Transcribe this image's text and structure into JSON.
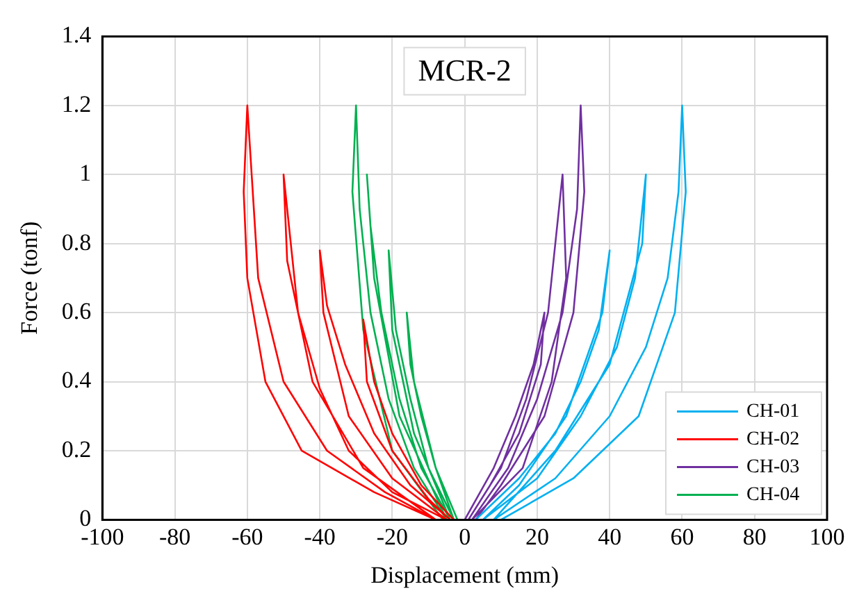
{
  "chart_data": {
    "type": "line",
    "title": "MCR-2",
    "xlabel": "Displacement (mm)",
    "ylabel": "Force (tonf)",
    "xlim": [
      -100,
      100
    ],
    "xticks": [
      -100,
      -80,
      -60,
      -40,
      -20,
      0,
      20,
      40,
      60,
      80,
      100
    ],
    "ylim": [
      0,
      1.4
    ],
    "yticks": [
      0,
      0.2,
      0.4,
      0.6,
      0.8,
      1,
      1.2,
      1.4
    ],
    "grid": true,
    "legend": "bottom right",
    "marker": "none",
    "line_style": "solid",
    "series": [
      {
        "name": "CH-01",
        "color": "#00b0f0",
        "x": [
          3,
          15,
          25,
          32,
          37,
          40,
          38,
          28,
          15,
          5,
          20,
          32,
          42,
          47,
          50,
          49,
          40,
          25,
          8,
          25,
          40,
          50,
          56,
          59,
          60,
          61,
          58,
          48,
          30,
          10
        ],
        "values": [
          0,
          0.12,
          0.25,
          0.4,
          0.55,
          0.78,
          0.6,
          0.3,
          0.1,
          0,
          0.12,
          0.3,
          0.5,
          0.7,
          1.0,
          0.8,
          0.45,
          0.2,
          0,
          0.12,
          0.3,
          0.5,
          0.7,
          0.95,
          1.2,
          0.95,
          0.6,
          0.3,
          0.12,
          0
        ]
      },
      {
        "name": "CH-02",
        "color": "#ff0000",
        "x": [
          -3,
          -12,
          -20,
          -25,
          -28,
          -27,
          -20,
          -10,
          -4,
          -15,
          -25,
          -33,
          -38,
          -40,
          -39,
          -32,
          -20,
          -5,
          -20,
          -32,
          -40,
          -46,
          -50,
          -49,
          -42,
          -28,
          -8,
          -22,
          -38,
          -50,
          -57,
          -60,
          -61,
          -60,
          -55,
          -45,
          -25,
          -8
        ],
        "values": [
          0,
          0.1,
          0.25,
          0.4,
          0.58,
          0.4,
          0.2,
          0.06,
          0,
          0.1,
          0.25,
          0.45,
          0.62,
          0.78,
          0.6,
          0.3,
          0.12,
          0,
          0.08,
          0.2,
          0.38,
          0.6,
          1.0,
          0.75,
          0.4,
          0.15,
          0,
          0.08,
          0.2,
          0.4,
          0.7,
          1.2,
          0.95,
          0.7,
          0.4,
          0.2,
          0.08,
          0
        ]
      },
      {
        "name": "CH-03",
        "color": "#7030a0",
        "x": [
          0,
          8,
          14,
          19,
          22,
          21,
          15,
          7,
          1,
          10,
          17,
          23,
          27,
          28,
          24,
          16,
          2,
          12,
          20,
          27,
          31,
          32,
          33,
          30,
          22,
          10,
          3
        ],
        "values": [
          0,
          0.15,
          0.3,
          0.45,
          0.6,
          0.45,
          0.25,
          0.1,
          0,
          0.15,
          0.35,
          0.6,
          1.0,
          0.7,
          0.4,
          0.15,
          0,
          0.15,
          0.35,
          0.6,
          0.9,
          1.2,
          0.95,
          0.6,
          0.3,
          0.1,
          0
        ]
      },
      {
        "name": "CH-04",
        "color": "#00b050",
        "x": [
          -2,
          -8,
          -12,
          -15,
          -16,
          -14,
          -8,
          -3,
          -10,
          -15,
          -19,
          -21,
          -20,
          -14,
          -4,
          -12,
          -18,
          -23,
          -26,
          -27,
          -25,
          -18,
          -5,
          -14,
          -21,
          -26,
          -29,
          -30,
          -31,
          -28,
          -20,
          -6
        ],
        "values": [
          0,
          0.15,
          0.3,
          0.45,
          0.6,
          0.4,
          0.15,
          0,
          0.15,
          0.35,
          0.55,
          0.78,
          0.55,
          0.25,
          0,
          0.15,
          0.35,
          0.6,
          0.85,
          1.0,
          0.7,
          0.3,
          0,
          0.15,
          0.35,
          0.6,
          0.9,
          1.2,
          0.95,
          0.55,
          0.2,
          0
        ]
      }
    ]
  }
}
